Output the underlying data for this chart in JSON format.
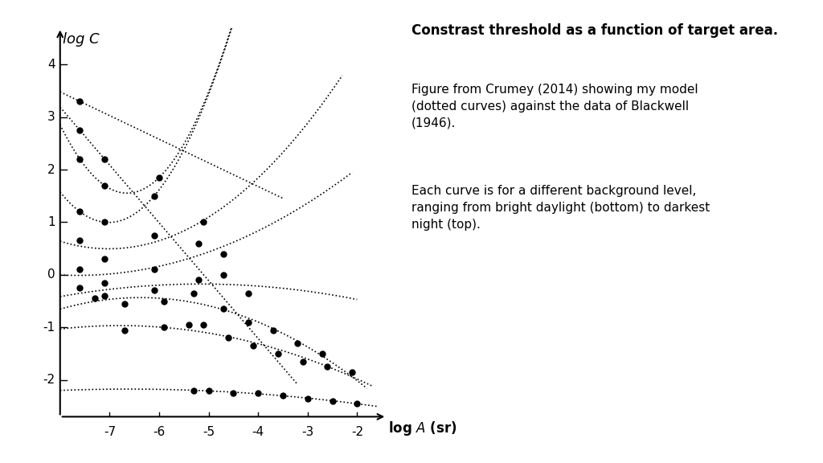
{
  "title": "Constrast threshold as a function of target area.",
  "text_block1": "Figure from Crumey (2014) showing my model\n(dotted curves) against the data of Blackwell\n(1946).",
  "text_block2": "Each curve is for a different background level,\nranging from bright daylight (bottom) to darkest\nnight (top).",
  "xlim": [
    -8.05,
    -1.4
  ],
  "ylim": [
    -2.7,
    4.7
  ],
  "xticks": [
    -7,
    -6,
    -5,
    -4,
    -3,
    -2
  ],
  "yticks": [
    -2,
    -1,
    0,
    1,
    2,
    3,
    4
  ],
  "curves": [
    {
      "data_pts": [
        [
          -7.6,
          3.3
        ]
      ],
      "curve_x0": -8.0,
      "curve_x1": -3.5,
      "a": 3.3,
      "b": -0.45
    },
    {
      "data_pts": [
        [
          -7.6,
          2.75
        ],
        [
          -7.1,
          2.2
        ]
      ],
      "curve_x0": -8.0,
      "curve_x1": -3.2,
      "a": 2.75,
      "b": -0.45
    },
    {
      "data_pts": [
        [
          -7.6,
          2.2
        ],
        [
          -7.1,
          1.7
        ],
        [
          -6.0,
          1.85
        ]
      ],
      "curve_x0": -8.0,
      "curve_x1": -2.8,
      "a": 2.2,
      "b": -0.38
    },
    {
      "data_pts": [
        [
          -7.6,
          1.2
        ],
        [
          -7.1,
          1.0
        ],
        [
          -6.1,
          1.5
        ]
      ],
      "curve_x0": -8.0,
      "curve_x1": -2.5,
      "a": 1.2,
      "b": -0.35
    },
    {
      "data_pts": [
        [
          -7.6,
          0.65
        ],
        [
          -7.1,
          0.3
        ],
        [
          -6.1,
          0.75
        ],
        [
          -5.1,
          1.0
        ]
      ],
      "curve_x0": -8.0,
      "curve_x1": -2.3,
      "a": 0.65,
      "b": -0.32
    },
    {
      "data_pts": [
        [
          -7.6,
          0.1
        ],
        [
          -7.1,
          -0.15
        ],
        [
          -6.1,
          0.1
        ],
        [
          -5.2,
          0.6
        ],
        [
          -4.7,
          0.4
        ]
      ],
      "curve_x0": -8.0,
      "curve_x1": -2.1,
      "a": 0.1,
      "b": -0.28
    },
    {
      "data_pts": [
        [
          -7.6,
          -0.25
        ],
        [
          -7.1,
          -0.4
        ],
        [
          -6.1,
          -0.3
        ],
        [
          -5.2,
          -0.1
        ],
        [
          -4.7,
          0.0
        ],
        [
          -4.2,
          -0.35
        ]
      ],
      "curve_x0": -8.0,
      "curve_x1": -2.0,
      "a": -0.25,
      "b": -0.25
    },
    {
      "data_pts": [
        [
          -7.3,
          -0.45
        ],
        [
          -6.7,
          -0.55
        ],
        [
          -5.9,
          -0.5
        ],
        [
          -5.3,
          -0.35
        ],
        [
          -4.7,
          -0.65
        ],
        [
          -4.2,
          -0.9
        ],
        [
          -3.7,
          -1.05
        ],
        [
          -3.2,
          -1.3
        ],
        [
          -2.7,
          -1.5
        ]
      ],
      "curve_x0": -8.0,
      "curve_x1": -1.8,
      "a": -0.45,
      "b": -0.2
    },
    {
      "data_pts": [
        [
          -6.7,
          -1.05
        ],
        [
          -5.9,
          -1.0
        ],
        [
          -5.4,
          -0.95
        ],
        [
          -5.1,
          -0.95
        ],
        [
          -4.6,
          -1.2
        ],
        [
          -4.1,
          -1.35
        ],
        [
          -3.6,
          -1.5
        ],
        [
          -3.1,
          -1.65
        ],
        [
          -2.6,
          -1.75
        ],
        [
          -2.1,
          -1.85
        ]
      ],
      "curve_x0": -8.0,
      "curve_x1": -1.7,
      "a": -1.05,
      "b": -0.12
    },
    {
      "data_pts": [
        [
          -5.3,
          -2.2
        ],
        [
          -5.0,
          -2.2
        ],
        [
          -4.5,
          -2.25
        ],
        [
          -4.0,
          -2.25
        ],
        [
          -3.5,
          -2.3
        ],
        [
          -3.0,
          -2.35
        ],
        [
          -2.5,
          -2.4
        ],
        [
          -2.0,
          -2.45
        ]
      ],
      "curve_x0": -8.0,
      "curve_x1": -1.6,
      "a": -2.2,
      "b": -0.04
    }
  ]
}
